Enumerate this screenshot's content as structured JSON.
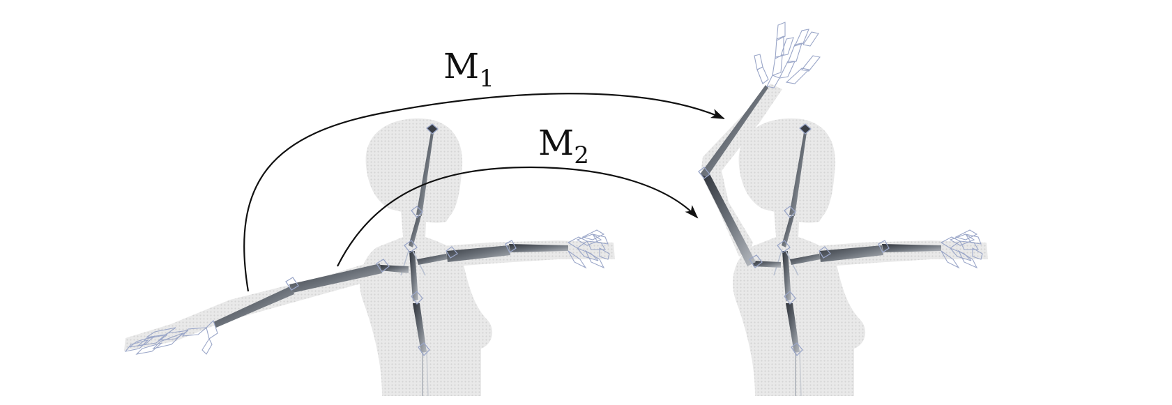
{
  "labels": {
    "m1": {
      "base": "M",
      "sub": "1"
    },
    "m2": {
      "base": "M",
      "sub": "2"
    }
  },
  "colors": {
    "background": "#ffffff",
    "body_fill": "#e6e6e6",
    "body_dots": "#d2d2d2",
    "bone_dark": "#3d4148",
    "bone_mid": "#6a7078",
    "bone_light": "#b8bcc2",
    "joint_outline": "#9aa6c8",
    "arrow": "#111111"
  }
}
